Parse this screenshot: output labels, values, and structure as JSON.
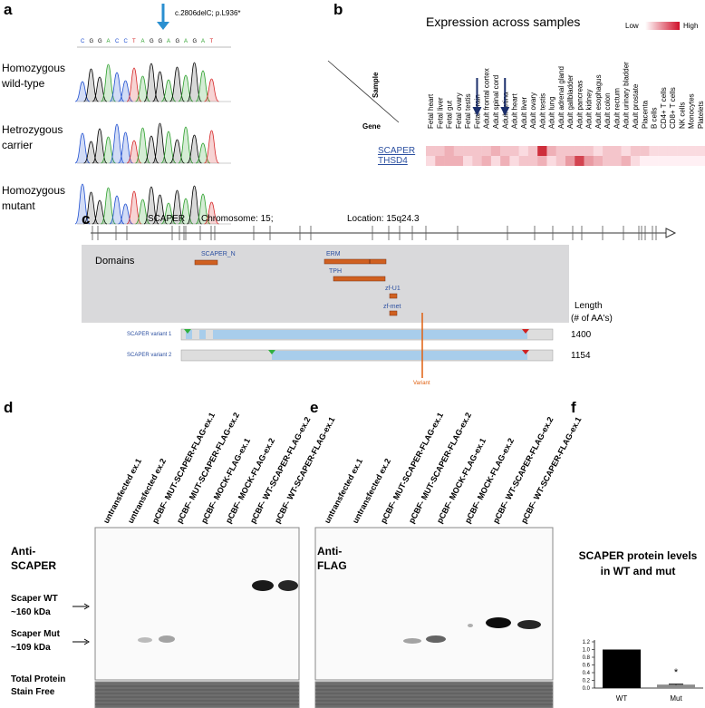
{
  "panels": {
    "a": {
      "label": "a",
      "mutation": "c.2806delC; p.L936*",
      "sequence": [
        "C",
        "G",
        "G",
        "A",
        "C",
        "C",
        "T",
        "A",
        "G",
        "G",
        "A",
        "G",
        "A",
        "G",
        "A",
        "T"
      ],
      "rows": [
        [
          "Homozygous",
          "wild-type"
        ],
        [
          "Hetrozygous",
          "carrier"
        ],
        [
          "Homozygous",
          "mutant"
        ]
      ]
    },
    "b": {
      "label": "b",
      "title": "Expression across samples",
      "legend_low": "Low",
      "legend_high": "High",
      "sample_header": "Sample",
      "gene_header": "Gene",
      "samples": [
        "Fetal heart",
        "Fetal liver",
        "Fetal gut",
        "Fetal ovary",
        "Fetal testis",
        "Fetal brain",
        "Adult frontal cortex",
        "Adult spinal cord",
        "Adult retina",
        "Adult heart",
        "Adult liver",
        "Adult ovary",
        "Adult testis",
        "Adult lung",
        "Adult adrenal gland",
        "Adult gallbladder",
        "Adult pancreas",
        "Adult kidney",
        "Adult esophagus",
        "Adult colon",
        "Adult rectum",
        "Adult urinary bladder",
        "Adult prostate",
        "Placenta",
        "B cells",
        "CD4+ T cells",
        "CD8+ T cells",
        "NK cells",
        "Monocytes",
        "Platelets"
      ],
      "genes": [
        "SCAPER",
        "THSD4"
      ],
      "values": [
        [
          2,
          2,
          3,
          2,
          2,
          2,
          2,
          3,
          2,
          2,
          1,
          2,
          9,
          3,
          2,
          2,
          2,
          2,
          1,
          2,
          2,
          1,
          2,
          2,
          1,
          1,
          1,
          1,
          1,
          1
        ],
        [
          1,
          3,
          3,
          3,
          1,
          2,
          3,
          1,
          3,
          1,
          2,
          2,
          3,
          1,
          2,
          4,
          8,
          4,
          3,
          2,
          2,
          3,
          1,
          0,
          0,
          0,
          0,
          0,
          0,
          0
        ]
      ]
    },
    "c": {
      "label": "c",
      "gene": "SCAPER",
      "chromosome": "Chromosome: 15;",
      "location": "Location: 15q24.3",
      "domains_title": "Domains",
      "domains": [
        "SCAPER_N",
        "ERM",
        "TPH",
        "zf-U1",
        "zf-met"
      ],
      "length_header": [
        "Length",
        "(# of AA's)"
      ],
      "variants": [
        {
          "name": "SCAPER variant 1",
          "length": "1400"
        },
        {
          "name": "SCAPER variant 2",
          "length": "1154"
        }
      ],
      "variant_marker": "Variant"
    },
    "d": {
      "label": "d",
      "lanes": [
        "untransfected ex.1",
        "untransfected ex.2",
        "pCBF- MUT-SCAPER-FLAG-ex.1",
        "pCBF- MUT-SCAPER-FLAG-ex.2",
        "pCBF- MOCK-FLAG-ex.1",
        "pCBF- MOCK-FLAG-ex.2",
        "pCBF- WT-SCAPER-FLAG-ex.2",
        "pCBF- WT-SCAPER-FLAG-ex.1"
      ],
      "antibody": [
        "Anti-",
        "SCAPER"
      ],
      "wt_marker": [
        "Scaper WT",
        "~160 kDa"
      ],
      "mut_marker": [
        "Scaper Mut",
        "~109 kDa"
      ],
      "stain": [
        "Total Protein",
        "Stain Free"
      ]
    },
    "e": {
      "label": "e",
      "lanes": [
        "untransfected ex.1",
        "untransfected ex.2",
        "pCBF- MUT-SCAPER-FLAG-ex.1",
        "pCBF- MUT-SCAPER-FLAG-ex.2",
        "pCBF- MOCK-FLAG-ex.1",
        "pCBF- MOCK-FLAG-ex.2",
        "pCBF- WT-SCAPER-FLAG-ex.2",
        "pCBF- WT-SCAPER-FLAG-ex.1"
      ],
      "antibody": [
        "Anti-",
        "FLAG"
      ]
    },
    "f": {
      "label": "f"
    }
  },
  "chart_data": {
    "type": "bar",
    "title": [
      "SCAPER protein levels",
      "in WT and mut"
    ],
    "categories": [
      "WT",
      "Mut"
    ],
    "values": [
      1.0,
      0.09
    ],
    "errors": [
      0,
      0.01
    ],
    "colors": [
      "#000000",
      "#8c8c8c"
    ],
    "annotations": [
      {
        "text": "*",
        "category": "Mut"
      }
    ],
    "ylim": [
      0,
      1.2
    ],
    "yticks": [
      {
        "value": 0,
        "label": "0.0"
      },
      {
        "value": 0.2,
        "label": "0.2"
      },
      {
        "value": 0.4,
        "label": "0.4"
      },
      {
        "value": 0.6,
        "label": "0.6"
      },
      {
        "value": 0.8,
        "label": "0.8"
      },
      {
        "value": 1.0,
        "label": "1.0"
      },
      {
        "value": 1.2,
        "label": "1.2"
      }
    ]
  }
}
